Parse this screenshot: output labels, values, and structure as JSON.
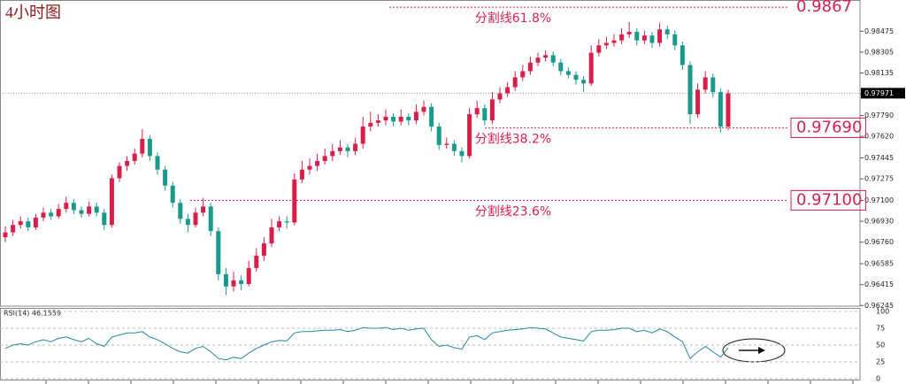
{
  "chart_data": [
    {
      "type": "candlestick",
      "title": "4小时图",
      "up_color": "#d81e4a",
      "down_color": "#1a9a8a",
      "ylim": [
        0.9624,
        0.987
      ],
      "yticks": [
        0.98475,
        0.98305,
        0.98135,
        0.97965,
        {
          "value": 0.9779,
          "label": "0.97790"
        },
        {
          "value": 0.9762,
          "label": "0.97620"
        },
        0.97445,
        0.97275,
        {
          "value": 0.971,
          "label": "0.97100"
        },
        {
          "value": 0.9693,
          "label": "0.96930"
        },
        {
          "value": 0.9676,
          "label": "0.96760"
        },
        0.96585,
        0.96415,
        0.96245
      ],
      "current_price": 0.97971,
      "levels": [
        {
          "name": "分割线61.8%",
          "price": 0.9867
        },
        {
          "name": "分割线38.2%",
          "price": {
            "value": 0.9769,
            "label": "0.97690"
          }
        },
        {
          "name": "分割线23.6%",
          "price": {
            "value": 0.971,
            "label": "0.97100"
          }
        }
      ],
      "level_color": "#d6204f",
      "candles": [
        [
          0.968,
          0.9689,
          0.9676,
          0.9684
        ],
        [
          0.9684,
          0.9694,
          0.9681,
          0.969
        ],
        [
          0.969,
          0.9697,
          0.9687,
          0.9693
        ],
        [
          0.9693,
          0.9696,
          0.9685,
          0.9688
        ],
        [
          0.9688,
          0.9699,
          0.9686,
          0.9696
        ],
        [
          0.9696,
          0.9704,
          0.9693,
          0.97
        ],
        [
          0.97,
          0.9703,
          0.9694,
          0.9697
        ],
        [
          0.9697,
          0.9707,
          0.9695,
          0.9703
        ],
        [
          0.9703,
          0.9713,
          0.97,
          0.9708
        ],
        [
          0.9708,
          0.9711,
          0.9699,
          0.9702
        ],
        [
          0.9702,
          0.9705,
          0.9696,
          0.9699
        ],
        [
          0.9699,
          0.9709,
          0.9697,
          0.9705
        ],
        [
          0.9705,
          0.9708,
          0.9697,
          0.97
        ],
        [
          0.97,
          0.9703,
          0.9686,
          0.969
        ],
        [
          0.969,
          0.9731,
          0.9688,
          0.9728
        ],
        [
          0.9728,
          0.9741,
          0.9725,
          0.9738
        ],
        [
          0.9738,
          0.9746,
          0.9734,
          0.9742
        ],
        [
          0.9742,
          0.9752,
          0.9739,
          0.9748
        ],
        [
          0.9748,
          0.9768,
          0.9745,
          0.976
        ],
        [
          0.976,
          0.9763,
          0.9742,
          0.9746
        ],
        [
          0.9746,
          0.9749,
          0.9731,
          0.9735
        ],
        [
          0.9735,
          0.9738,
          0.9718,
          0.9722
        ],
        [
          0.9722,
          0.9725,
          0.9704,
          0.9708
        ],
        [
          0.9708,
          0.9711,
          0.9691,
          0.9695
        ],
        [
          0.9695,
          0.9699,
          0.9684,
          0.969
        ],
        [
          0.969,
          0.9704,
          0.9688,
          0.97
        ],
        [
          0.97,
          0.9712,
          0.9697,
          0.9705
        ],
        [
          0.9705,
          0.9708,
          0.9681,
          0.9685
        ],
        [
          0.9685,
          0.9688,
          0.9645,
          0.965
        ],
        [
          0.965,
          0.9655,
          0.9633,
          0.964
        ],
        [
          0.964,
          0.9652,
          0.9636,
          0.9645
        ],
        [
          0.9645,
          0.9649,
          0.9637,
          0.9642
        ],
        [
          0.9642,
          0.9661,
          0.964,
          0.9655
        ],
        [
          0.9655,
          0.9671,
          0.9652,
          0.9665
        ],
        [
          0.9665,
          0.968,
          0.9661,
          0.9675
        ],
        [
          0.9675,
          0.9695,
          0.9672,
          0.9688
        ],
        [
          0.9688,
          0.9697,
          0.9685,
          0.9693
        ],
        [
          0.9693,
          0.9697,
          0.9687,
          0.9692
        ],
        [
          0.9692,
          0.9732,
          0.969,
          0.9727
        ],
        [
          0.9727,
          0.9742,
          0.9724,
          0.9735
        ],
        [
          0.9735,
          0.9744,
          0.9731,
          0.9738
        ],
        [
          0.9738,
          0.9748,
          0.9734,
          0.9742
        ],
        [
          0.9742,
          0.9752,
          0.9739,
          0.9746
        ],
        [
          0.9746,
          0.9756,
          0.9742,
          0.975
        ],
        [
          0.975,
          0.9759,
          0.9747,
          0.9753
        ],
        [
          0.9753,
          0.9756,
          0.9745,
          0.975
        ],
        [
          0.975,
          0.9761,
          0.9747,
          0.9756
        ],
        [
          0.9756,
          0.9778,
          0.9752,
          0.977
        ],
        [
          0.977,
          0.9782,
          0.9766,
          0.9773
        ],
        [
          0.9773,
          0.978,
          0.977,
          0.9775
        ],
        [
          0.9775,
          0.9784,
          0.9771,
          0.9778
        ],
        [
          0.9778,
          0.9781,
          0.977,
          0.9774
        ],
        [
          0.9774,
          0.9784,
          0.9771,
          0.9778
        ],
        [
          0.9778,
          0.9781,
          0.9771,
          0.9775
        ],
        [
          0.9775,
          0.9788,
          0.9772,
          0.9782
        ],
        [
          0.9782,
          0.9791,
          0.9779,
          0.9786
        ],
        [
          0.9786,
          0.9789,
          0.9766,
          0.977
        ],
        [
          0.977,
          0.9773,
          0.9751,
          0.9755
        ],
        [
          0.9755,
          0.9761,
          0.9752,
          0.9756
        ],
        [
          0.9756,
          0.9759,
          0.9746,
          0.975
        ],
        [
          0.975,
          0.9753,
          0.9741,
          0.9746
        ],
        [
          0.9746,
          0.9785,
          0.9744,
          0.978
        ],
        [
          0.978,
          0.9791,
          0.9777,
          0.9785
        ],
        [
          0.9785,
          0.9788,
          0.9771,
          0.9775
        ],
        [
          0.9775,
          0.9798,
          0.9772,
          0.9792
        ],
        [
          0.9792,
          0.9802,
          0.9789,
          0.9797
        ],
        [
          0.9797,
          0.9806,
          0.9794,
          0.9802
        ],
        [
          0.9802,
          0.9815,
          0.9799,
          0.981
        ],
        [
          0.981,
          0.982,
          0.9807,
          0.9815
        ],
        [
          0.9815,
          0.9827,
          0.9812,
          0.9822
        ],
        [
          0.9822,
          0.983,
          0.9819,
          0.9826
        ],
        [
          0.9826,
          0.9832,
          0.9823,
          0.9828
        ],
        [
          0.9828,
          0.9831,
          0.9819,
          0.9822
        ],
        [
          0.9822,
          0.9825,
          0.9812,
          0.9815
        ],
        [
          0.9815,
          0.9818,
          0.9809,
          0.9812
        ],
        [
          0.9812,
          0.9815,
          0.9804,
          0.9808
        ],
        [
          0.9808,
          0.9811,
          0.9798,
          0.9805
        ],
        [
          0.9805,
          0.9836,
          0.9803,
          0.983
        ],
        [
          0.983,
          0.9841,
          0.9827,
          0.9836
        ],
        [
          0.9836,
          0.9843,
          0.9833,
          0.9838
        ],
        [
          0.9838,
          0.9845,
          0.9835,
          0.984
        ],
        [
          0.984,
          0.985,
          0.9837,
          0.9845
        ],
        [
          0.9845,
          0.9855,
          0.9842,
          0.9847
        ],
        [
          0.9847,
          0.985,
          0.9836,
          0.984
        ],
        [
          0.984,
          0.9848,
          0.9837,
          0.9844
        ],
        [
          0.9844,
          0.9847,
          0.9834,
          0.9838
        ],
        [
          0.9838,
          0.9854,
          0.9835,
          0.9849
        ],
        [
          0.9849,
          0.9852,
          0.9841,
          0.9845
        ],
        [
          0.9845,
          0.9848,
          0.9832,
          0.9836
        ],
        [
          0.9836,
          0.9839,
          0.9816,
          0.982
        ],
        [
          0.982,
          0.9823,
          0.9772,
          0.978
        ],
        [
          0.978,
          0.9805,
          0.9777,
          0.98
        ],
        [
          0.98,
          0.9815,
          0.9797,
          0.981
        ],
        [
          0.981,
          0.9813,
          0.9794,
          0.9798
        ],
        [
          0.9798,
          0.9801,
          0.9765,
          0.977
        ],
        [
          0.977,
          0.98,
          0.9767,
          0.9797
        ]
      ]
    },
    {
      "type": "line",
      "title": "RSI(14) 46.1559",
      "color": "#1f8a9a",
      "ylim": [
        0,
        100
      ],
      "yticks": [
        100,
        75,
        50,
        25,
        0
      ],
      "grid": true,
      "values": [
        45,
        50,
        52,
        50,
        55,
        58,
        55,
        60,
        62,
        58,
        55,
        60,
        52,
        48,
        62,
        65,
        68,
        68,
        70,
        62,
        58,
        52,
        45,
        40,
        38,
        45,
        48,
        40,
        30,
        28,
        32,
        30,
        38,
        45,
        50,
        55,
        57,
        56,
        68,
        70,
        70,
        71,
        72,
        72,
        73,
        70,
        72,
        76,
        75,
        75,
        76,
        73,
        75,
        72,
        74,
        75,
        58,
        48,
        50,
        46,
        44,
        62,
        64,
        58,
        68,
        70,
        72,
        73,
        74,
        76,
        75,
        74,
        68,
        62,
        60,
        58,
        56,
        70,
        72,
        72,
        73,
        75,
        75,
        70,
        72,
        68,
        74,
        70,
        62,
        55,
        30,
        40,
        48,
        40,
        32,
        46
      ]
    }
  ]
}
